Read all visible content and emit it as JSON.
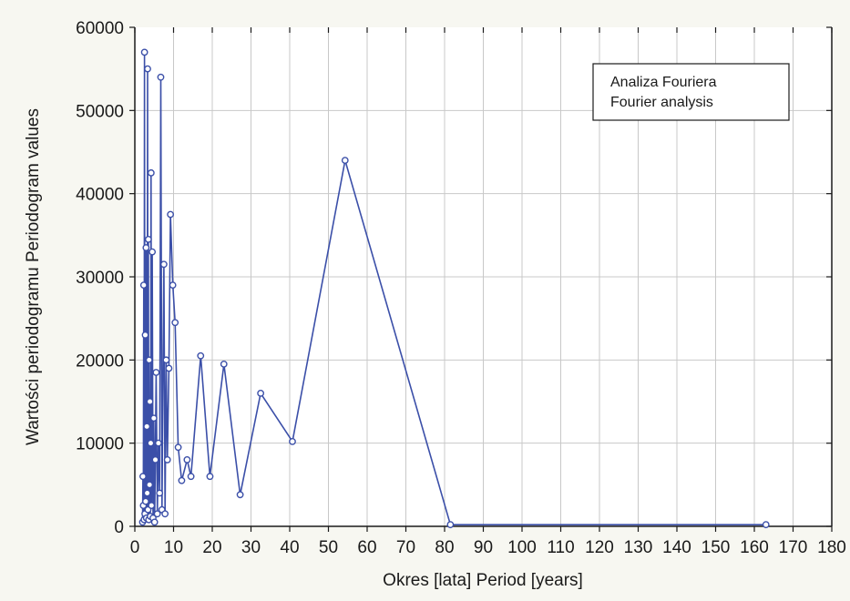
{
  "chart_data": {
    "type": "line",
    "title": "",
    "xlabel": "Okres [lata] Period [years]",
    "ylabel": "Wartości periodogramu Periodogram values",
    "xlim": [
      0,
      180
    ],
    "ylim": [
      0,
      60000
    ],
    "xticks": [
      0,
      10,
      20,
      30,
      40,
      50,
      60,
      70,
      80,
      90,
      100,
      110,
      120,
      130,
      140,
      150,
      160,
      170,
      180
    ],
    "xtick_labels": [
      "0",
      "10",
      "20",
      "30",
      "40",
      "50",
      "60",
      "70",
      "80",
      "90",
      "100",
      "110",
      "120",
      "130",
      "140",
      "150",
      "160",
      "170",
      "180"
    ],
    "yticks": [
      0,
      10000,
      20000,
      30000,
      40000,
      50000,
      60000
    ],
    "ytick_labels": [
      "0",
      "10000",
      "20000",
      "30000",
      "40000",
      "50000",
      "60000"
    ],
    "grid": true,
    "legend_placement": "top-right",
    "legend_lines": [
      "Analiza Fouriera",
      "Fourier analysis"
    ],
    "series_color": "#3b4fa8",
    "series": [
      {
        "points": [
          [
            2.0,
            500
          ],
          [
            2.1,
            6000
          ],
          [
            2.2,
            2500
          ],
          [
            2.3,
            29000
          ],
          [
            2.4,
            800
          ],
          [
            2.5,
            57000
          ],
          [
            2.6,
            1500
          ],
          [
            2.7,
            23000
          ],
          [
            2.8,
            3000
          ],
          [
            2.9,
            33500
          ],
          [
            3.0,
            1000
          ],
          [
            3.1,
            12000
          ],
          [
            3.2,
            4000
          ],
          [
            3.3,
            55000
          ],
          [
            3.4,
            2000
          ],
          [
            3.5,
            34500
          ],
          [
            3.6,
            800
          ],
          [
            3.7,
            20000
          ],
          [
            3.8,
            5000
          ],
          [
            3.9,
            15000
          ],
          [
            4.0,
            1200
          ],
          [
            4.1,
            10000
          ],
          [
            4.2,
            42500
          ],
          [
            4.3,
            2500
          ],
          [
            4.5,
            33000
          ],
          [
            4.7,
            1000
          ],
          [
            4.9,
            13000
          ],
          [
            5.1,
            500
          ],
          [
            5.3,
            8000
          ],
          [
            5.5,
            18500
          ],
          [
            5.8,
            1500
          ],
          [
            6.1,
            10000
          ],
          [
            6.4,
            4000
          ],
          [
            6.7,
            54000
          ],
          [
            7.0,
            2000
          ],
          [
            7.5,
            31500
          ],
          [
            7.8,
            1500
          ],
          [
            8.1,
            20000
          ],
          [
            8.4,
            8000
          ],
          [
            8.8,
            19000
          ],
          [
            9.2,
            37500
          ],
          [
            9.8,
            29000
          ],
          [
            10.4,
            24500
          ],
          [
            11.2,
            9500
          ],
          [
            12.1,
            5500
          ],
          [
            13.5,
            8000
          ],
          [
            14.5,
            6000
          ],
          [
            17.0,
            20500
          ],
          [
            19.4,
            6000
          ],
          [
            23.0,
            19500
          ],
          [
            27.2,
            3800
          ],
          [
            32.5,
            16000
          ],
          [
            40.7,
            10200
          ],
          [
            54.3,
            44000
          ],
          [
            81.5,
            200
          ],
          [
            163.0,
            200
          ]
        ]
      }
    ]
  }
}
